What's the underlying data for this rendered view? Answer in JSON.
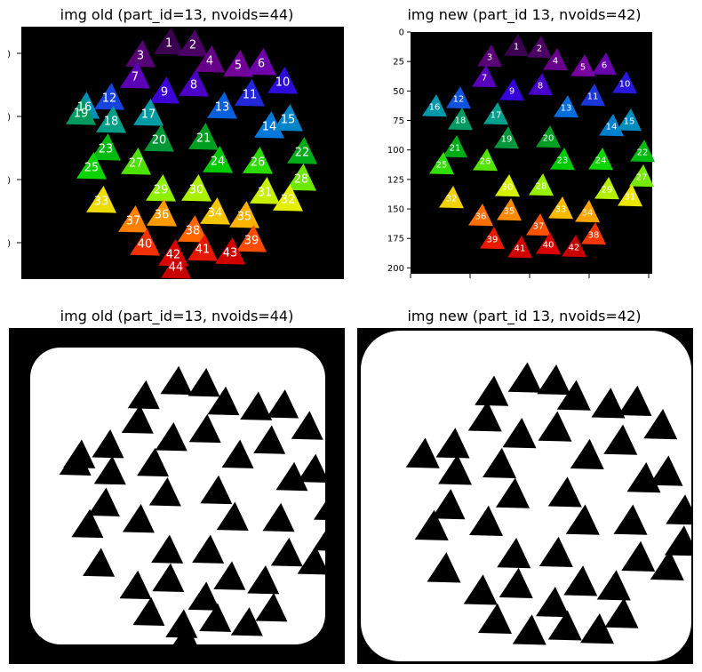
{
  "titles": {
    "top_left": "img old (part_id=13, nvoids=44)",
    "top_right": "img new (part_id 13, nvoids=42)",
    "bottom_left": "img old (part_id=13, nvoids=44)",
    "bottom_right": "img new (part_id 13, nvoids=42)"
  },
  "colors": {
    "background": "#000000",
    "mask_foreground": "#ffffff",
    "label_text": "#ffffff"
  },
  "chart_data": [
    {
      "type": "heatmap",
      "title": "img old (part_id=13, nvoids=44)",
      "description_kind": "labeled void segmentation, colormap by label index",
      "labels": [
        1,
        2,
        3,
        4,
        5,
        6,
        7,
        8,
        9,
        10,
        11,
        12,
        13,
        14,
        15,
        16,
        17,
        18,
        19,
        20,
        21,
        22,
        23,
        24,
        25,
        26,
        27,
        28,
        29,
        30,
        31,
        32,
        33,
        34,
        35,
        36,
        37,
        38,
        39,
        40,
        41,
        42,
        43,
        44
      ],
      "y_tick_labels": [
        ")",
        ")",
        ")",
        ")"
      ]
    },
    {
      "type": "heatmap",
      "title": "img new (part_id 13, nvoids=42)",
      "description_kind": "labeled void segmentation, colormap by label index",
      "labels": [
        1,
        2,
        3,
        4,
        5,
        6,
        7,
        8,
        9,
        10,
        11,
        12,
        13,
        14,
        15,
        16,
        17,
        18,
        19,
        20,
        21,
        22,
        23,
        24,
        25,
        26,
        27,
        28,
        29,
        30,
        31,
        32,
        33,
        34,
        35,
        36,
        37,
        38,
        39,
        40,
        41,
        42
      ],
      "y_ticks": [
        0,
        25,
        50,
        75,
        100,
        125,
        150,
        175,
        200
      ],
      "ylim": [
        0,
        205
      ]
    },
    {
      "type": "heatmap",
      "title": "img old (part_id=13, nvoids=44)",
      "description_kind": "binary mask"
    },
    {
      "type": "heatmap",
      "title": "img new (part_id 13, nvoids=42)",
      "description_kind": "binary mask"
    }
  ]
}
